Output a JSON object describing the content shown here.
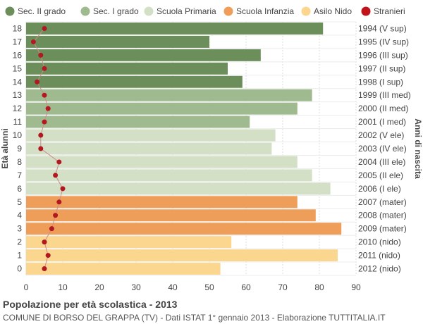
{
  "chart_data": {
    "type": "bar",
    "orientation": "horizontal",
    "title": "Popolazione per età scolastica - 2013",
    "subtitle": "COMUNE DI BORSO DEL GRAPPA (TV) - Dati ISTAT 1° gennaio 2013 - Elaborazione TUTTITALIA.IT",
    "ylabel": "Età alunni",
    "ylabel_right": "Anni di nascita",
    "xlim": [
      0,
      90
    ],
    "xticks": [
      0,
      10,
      20,
      30,
      40,
      50,
      60,
      70,
      80,
      90
    ],
    "grid": true,
    "legend_position": "top",
    "legend": [
      {
        "name": "Sec. II grado",
        "color": "#6b8e5a",
        "marker": "circle"
      },
      {
        "name": "Sec. I grado",
        "color": "#9fba8f",
        "marker": "circle"
      },
      {
        "name": "Scuola Primaria",
        "color": "#d4e0c6",
        "marker": "circle"
      },
      {
        "name": "Scuola Infanzia",
        "color": "#ee9e58",
        "marker": "circle"
      },
      {
        "name": "Asilo Nido",
        "color": "#fbd68e",
        "marker": "circle"
      },
      {
        "name": "Stranieri",
        "color": "#c0141a",
        "marker": "circle"
      }
    ],
    "ages": [
      "18",
      "17",
      "16",
      "15",
      "14",
      "13",
      "12",
      "11",
      "10",
      "9",
      "8",
      "7",
      "6",
      "5",
      "4",
      "3",
      "2",
      "1",
      "0"
    ],
    "birth_years": [
      "1994 (V sup)",
      "1995 (IV sup)",
      "1996 (III sup)",
      "1997 (II sup)",
      "1998 (I sup)",
      "1999 (III med)",
      "2000 (II med)",
      "2001 (I med)",
      "2002 (V ele)",
      "2003 (IV ele)",
      "2004 (III ele)",
      "2005 (II ele)",
      "2006 (I ele)",
      "2007 (mater)",
      "2008 (mater)",
      "2009 (mater)",
      "2010 (nido)",
      "2011 (nido)",
      "2012 (nido)"
    ],
    "values": [
      81,
      50,
      64,
      55,
      59,
      78,
      74,
      61,
      68,
      67,
      74,
      78,
      83,
      74,
      79,
      86,
      56,
      85,
      53
    ],
    "groups": [
      0,
      0,
      0,
      0,
      0,
      1,
      1,
      1,
      2,
      2,
      2,
      2,
      2,
      3,
      3,
      3,
      4,
      4,
      4
    ],
    "stranieri": [
      5,
      2,
      4,
      5,
      3,
      5,
      6,
      5,
      4,
      4,
      9,
      8,
      10,
      9,
      8,
      7,
      5,
      6,
      5
    ]
  }
}
